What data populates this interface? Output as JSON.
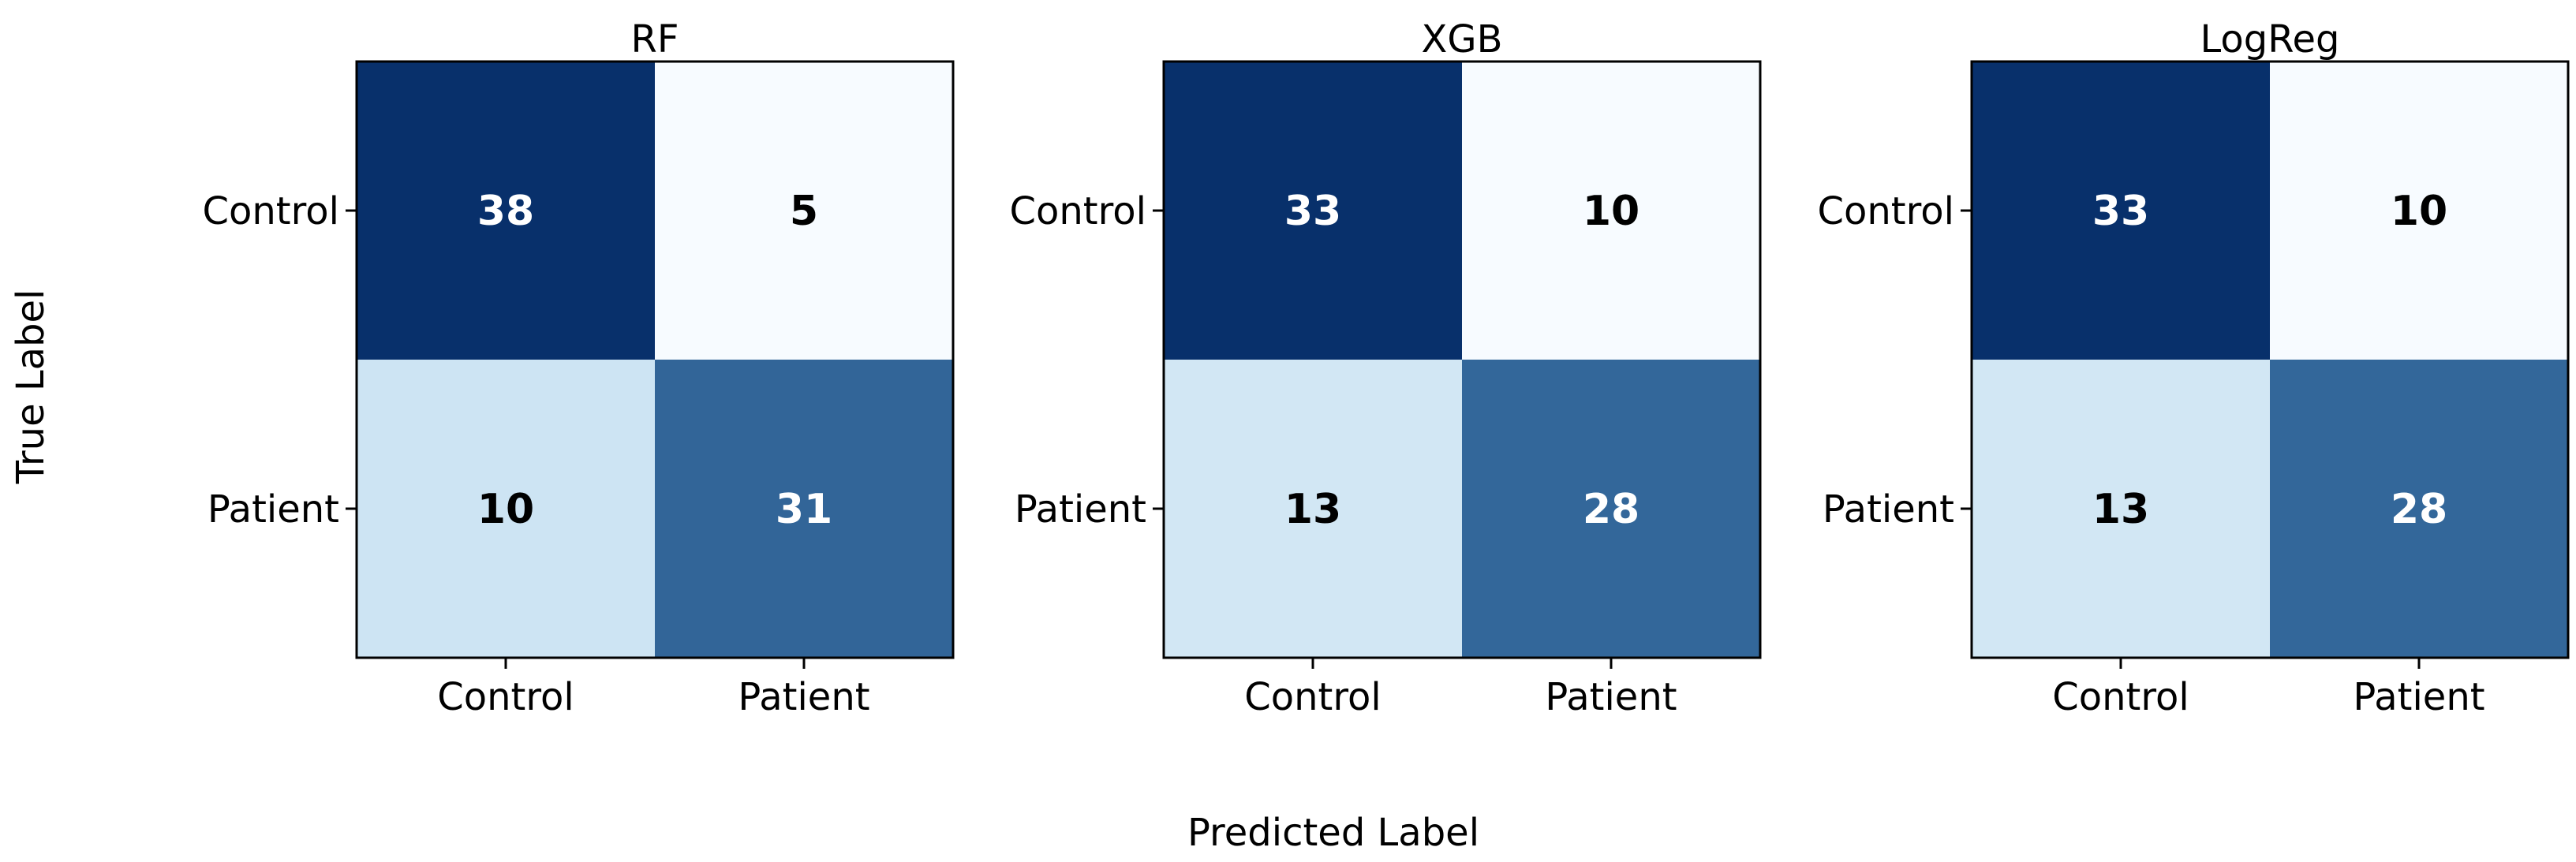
{
  "chart_data": {
    "type": "heatmap",
    "xlabel": "Predicted Label",
    "ylabel": "True Label",
    "colormap": {
      "low": "#f7fbff",
      "mid": "#6baed6",
      "high": "#08306b"
    },
    "panels": [
      {
        "title": "RF",
        "x_categories": [
          "Control",
          "Patient"
        ],
        "y_categories": [
          "Control",
          "Patient"
        ],
        "matrix": [
          [
            38,
            5
          ],
          [
            10,
            31
          ]
        ]
      },
      {
        "title": "XGB",
        "x_categories": [
          "Control",
          "Patient"
        ],
        "y_categories": [
          "Control",
          "Patient"
        ],
        "matrix": [
          [
            33,
            10
          ],
          [
            13,
            28
          ]
        ]
      },
      {
        "title": "LogReg",
        "x_categories": [
          "Control",
          "Patient"
        ],
        "y_categories": [
          "Control",
          "Patient"
        ],
        "matrix": [
          [
            33,
            10
          ],
          [
            13,
            28
          ]
        ]
      }
    ]
  }
}
